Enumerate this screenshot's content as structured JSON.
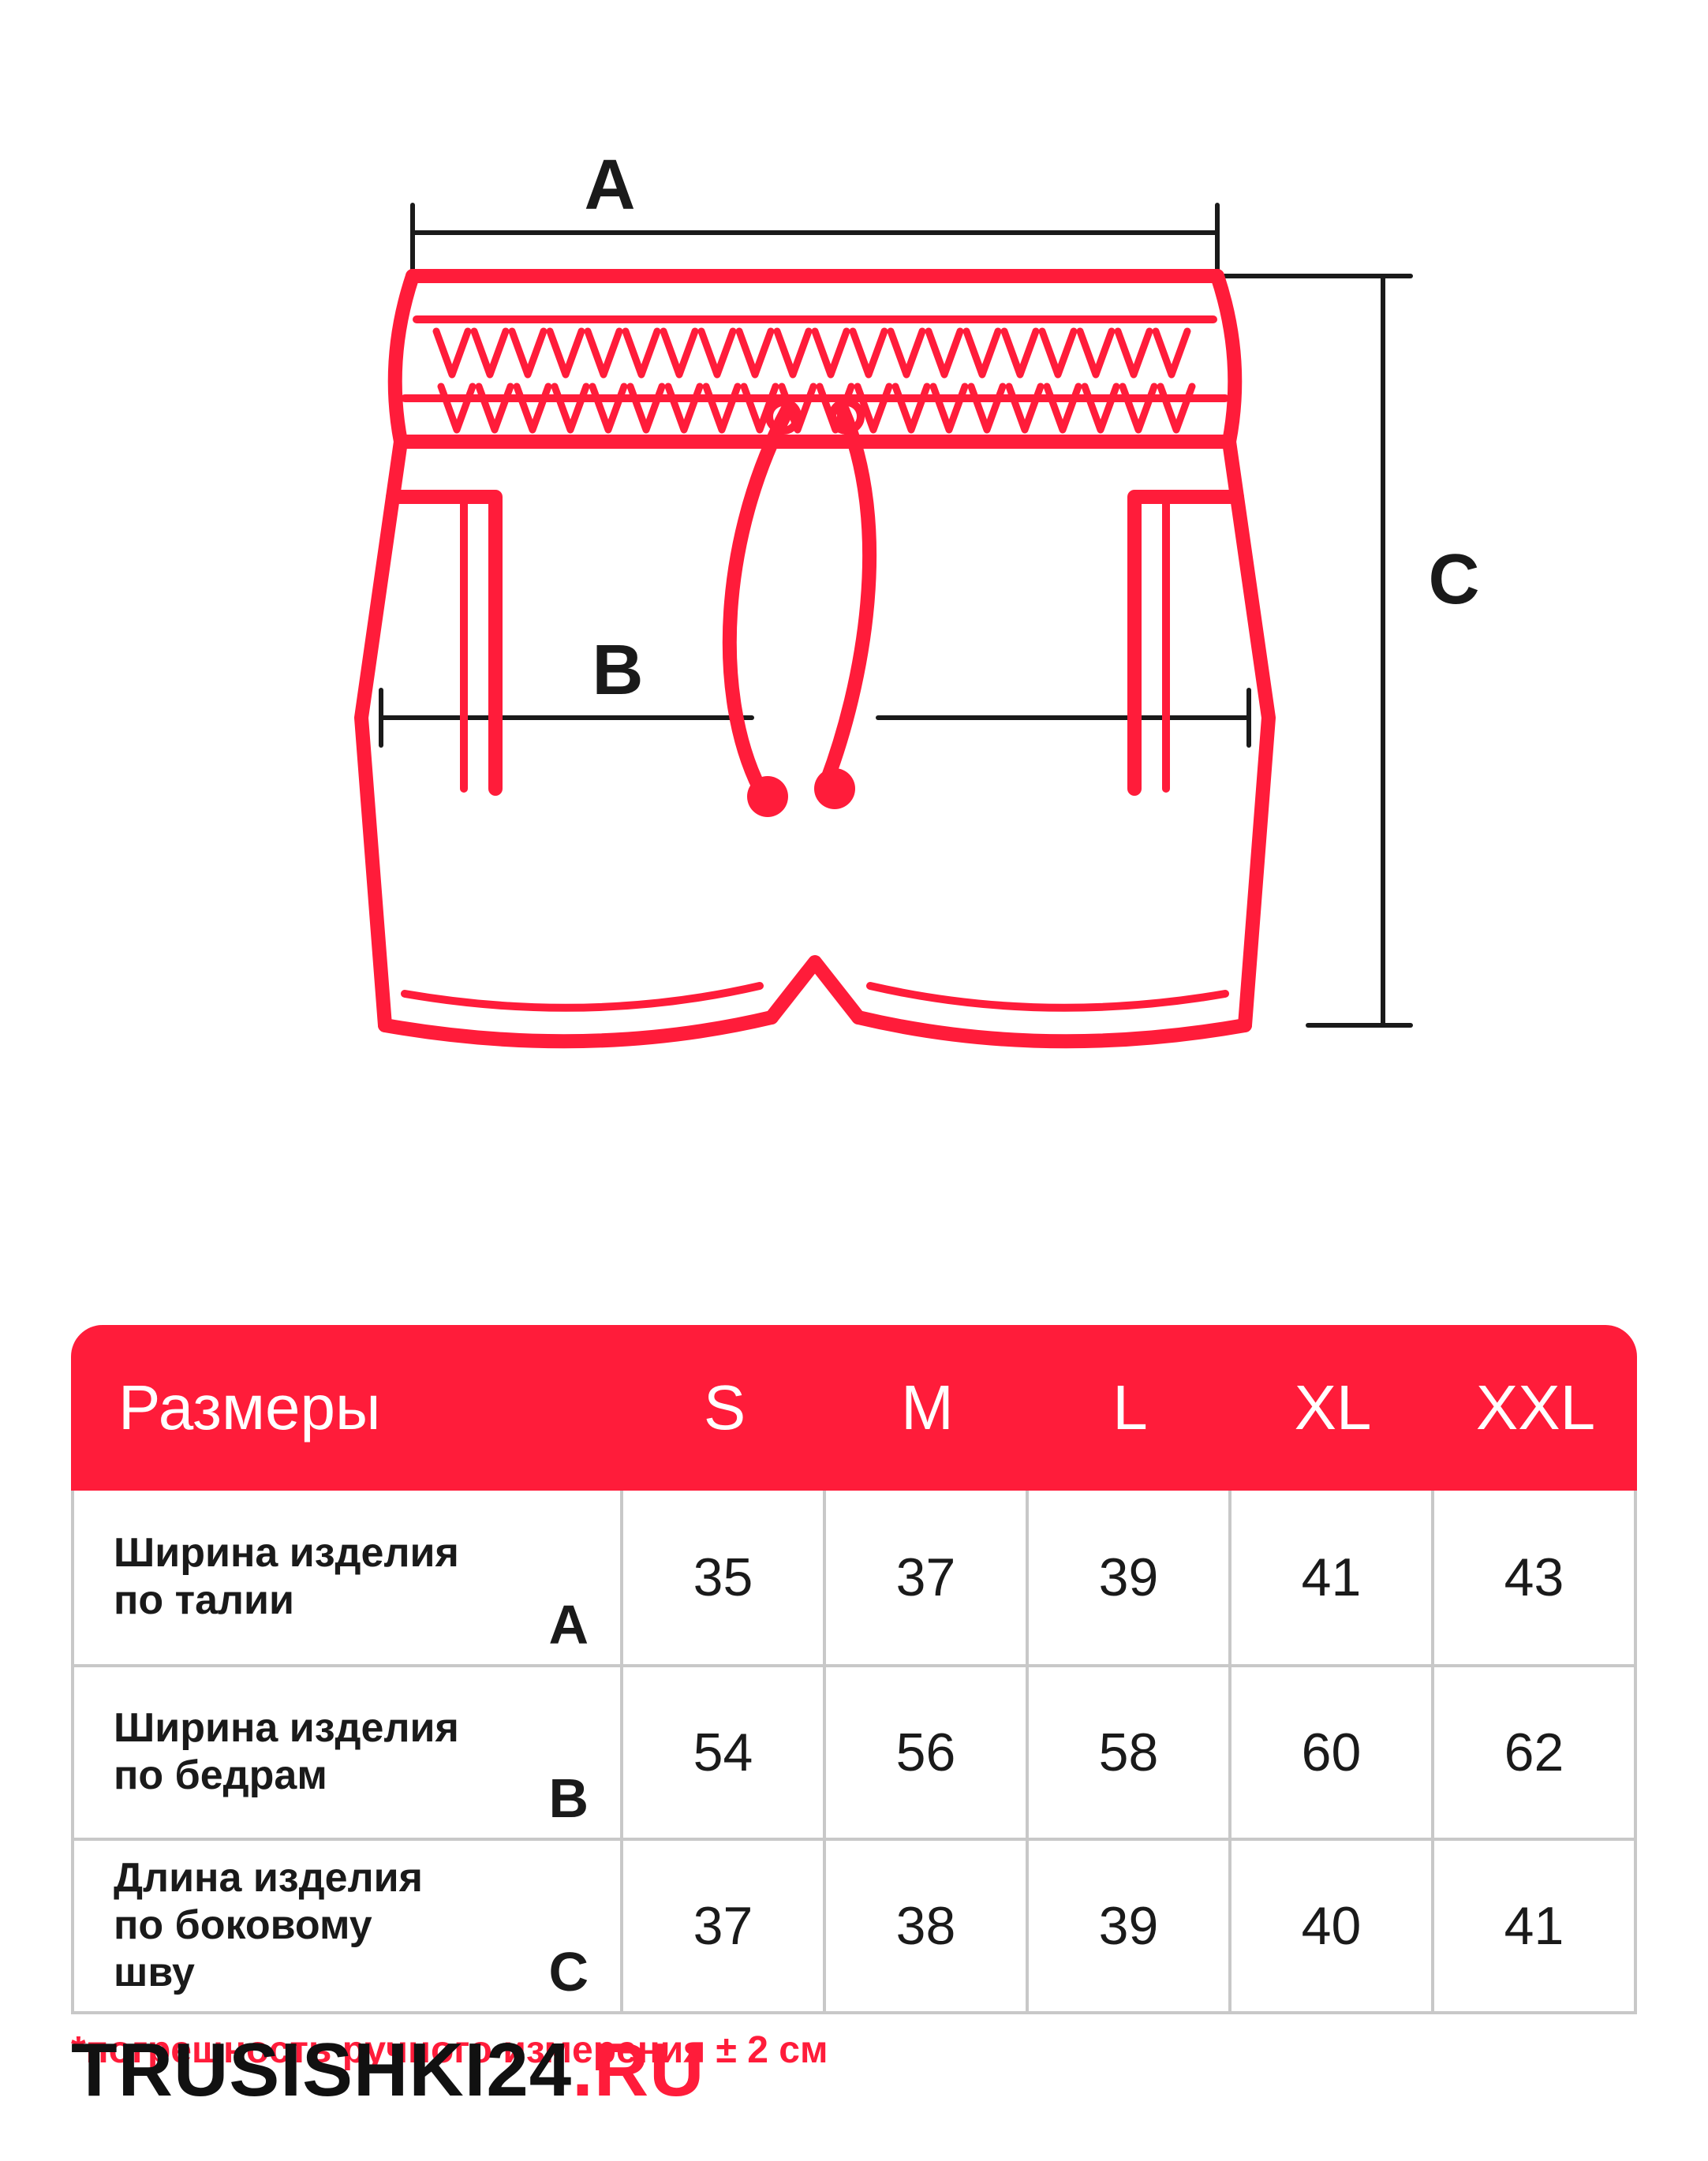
{
  "diagram": {
    "type": "product-dimension-diagram",
    "stroke_color": "#ff1c3a",
    "stroke_width_main": 18,
    "stroke_width_thin": 10,
    "dimension_line_color": "#1a1a1a",
    "dimension_line_width": 6,
    "label_font_size": 90,
    "labels": {
      "A": "A",
      "B": "B",
      "C": "C"
    }
  },
  "table": {
    "header_bg": "#ff1c3a",
    "header_fg": "#ffffff",
    "border_color": "#c8c8c8",
    "text_color": "#1a1a1a",
    "header_label": "Размеры",
    "header_fontsize": 80,
    "cell_fontsize": 68,
    "label_fontsize": 52,
    "letter_fontsize": 70,
    "sizes": [
      "S",
      "M",
      "L",
      "XL",
      "XXL"
    ],
    "rows": [
      {
        "label": "Ширина изделия\nпо талии",
        "letter": "A",
        "values": [
          "35",
          "37",
          "39",
          "41",
          "43"
        ]
      },
      {
        "label": "Ширина изделия\nпо бедрам",
        "letter": "B",
        "values": [
          "54",
          "56",
          "58",
          "60",
          "62"
        ]
      },
      {
        "label": "Длина изделия\nпо боковому\nшву",
        "letter": "C",
        "values": [
          "37",
          "38",
          "39",
          "40",
          "41"
        ]
      }
    ]
  },
  "footnote": "*погрешность ручного измерения ± 2 см",
  "logo": {
    "black": "TRUSISHKI24",
    "dot": ".",
    "red": "RU"
  }
}
